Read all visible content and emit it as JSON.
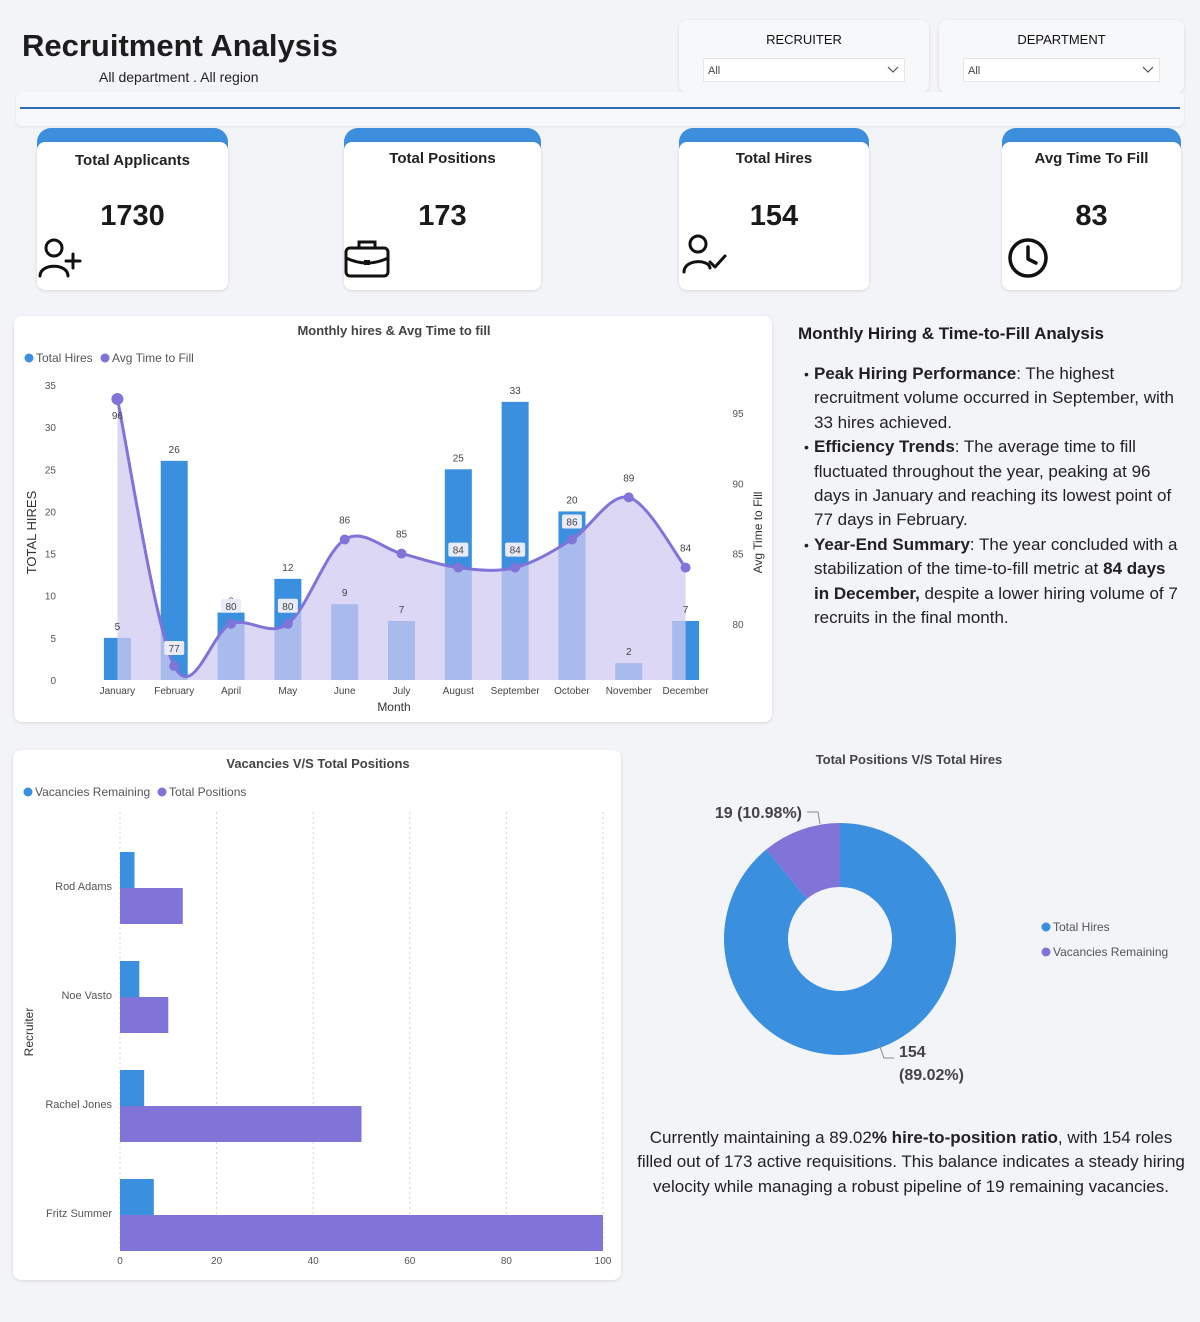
{
  "header": {
    "title": "Recruitment Analysis",
    "subtitle": "All department . All region"
  },
  "filters": {
    "recruiter": {
      "label": "RECRUITER",
      "value": "All"
    },
    "department": {
      "label": "DEPARTMENT",
      "value": "All"
    }
  },
  "kpis": [
    {
      "label": "Total Applicants",
      "value": "1730",
      "icon": "add-user-icon"
    },
    {
      "label": "Total Positions",
      "value": "173",
      "icon": "briefcase-icon"
    },
    {
      "label": "Total Hires",
      "value": "154",
      "icon": "user-check-icon"
    },
    {
      "label": "Avg Time To Fill",
      "value": "83",
      "icon": "clock-icon"
    }
  ],
  "colors": {
    "blue": "#3a8fdf",
    "purple": "#8074d8",
    "purple_fill": "#cfcaf0",
    "accent_line": "#2e6db4"
  },
  "analysis": {
    "title": "Monthly Hiring & Time-to-Fill Analysis",
    "points": [
      {
        "strong": "Peak Hiring Performance",
        "text": ": The highest recruitment volume occurred in September, with 33 hires achieved."
      },
      {
        "strong": "Efficiency Trends",
        "text": ": The average time to fill fluctuated throughout the year, peaking at 96 days in January and reaching its lowest point of 77 days in February."
      },
      {
        "strong": "Year-End Summary",
        "text": ": The year concluded with a stabilization of the time-to-fill metric at ",
        "strong2": "84 days in December,",
        "text2": " despite a lower hiring volume of 7 recruits in the final month."
      }
    ]
  },
  "summary": {
    "pre": "Currently maintaining a 89.02",
    "strong": "% hire-to-position ratio",
    "post": ", with 154 roles filled out of 173 active requisitions. This balance indicates a steady hiring velocity while managing a robust pipeline of 19 remaining vacancies."
  },
  "chart_data": [
    {
      "type": "bar",
      "title": "Monthly hires & Avg Time to fill",
      "xlabel": "Month",
      "ylabel": "TOTAL HIRES",
      "y2label": "Avg Time to Fill",
      "categories": [
        "January",
        "February",
        "April",
        "May",
        "June",
        "July",
        "August",
        "September",
        "October",
        "November",
        "December"
      ],
      "series": [
        {
          "name": "Total Hires",
          "type": "bar",
          "values": [
            5,
            26,
            8,
            12,
            9,
            7,
            25,
            33,
            20,
            2,
            7
          ]
        },
        {
          "name": "Avg Time to Fill",
          "type": "area-line",
          "axis": "secondary",
          "values": [
            96,
            77,
            80,
            80,
            86,
            85,
            84,
            84,
            86,
            89,
            84
          ]
        }
      ],
      "ylim": [
        0,
        35
      ],
      "yticks": [
        0,
        5,
        10,
        15,
        20,
        25,
        30,
        35
      ],
      "y2lim": [
        76,
        97
      ],
      "y2ticks": [
        80,
        85,
        90,
        95
      ],
      "legend": "top-left"
    },
    {
      "type": "bar",
      "orientation": "horizontal",
      "title": "Vacancies V/S Total Positions",
      "ylabel": "Recruiter",
      "categories": [
        "Rod Adams",
        "Noe Vasto",
        "Rachel Jones",
        "Fritz Summer"
      ],
      "series": [
        {
          "name": "Vacancies Remaining",
          "values": [
            3,
            4,
            5,
            7
          ]
        },
        {
          "name": "Total Positions",
          "values": [
            13,
            10,
            50,
            100
          ]
        }
      ],
      "xlim": [
        0,
        100
      ],
      "xticks": [
        0,
        20,
        40,
        60,
        80,
        100
      ],
      "grid": true,
      "legend": "top-left"
    },
    {
      "type": "pie",
      "style": "donut",
      "title": "Total Positions V/S Total Hires",
      "slices": [
        {
          "name": "Total Hires",
          "value": 154,
          "label": "154",
          "pct": "(89.02%)"
        },
        {
          "name": "Vacancies Remaining",
          "value": 19,
          "label": "19 (10.98%)"
        }
      ],
      "legend": "right"
    }
  ]
}
